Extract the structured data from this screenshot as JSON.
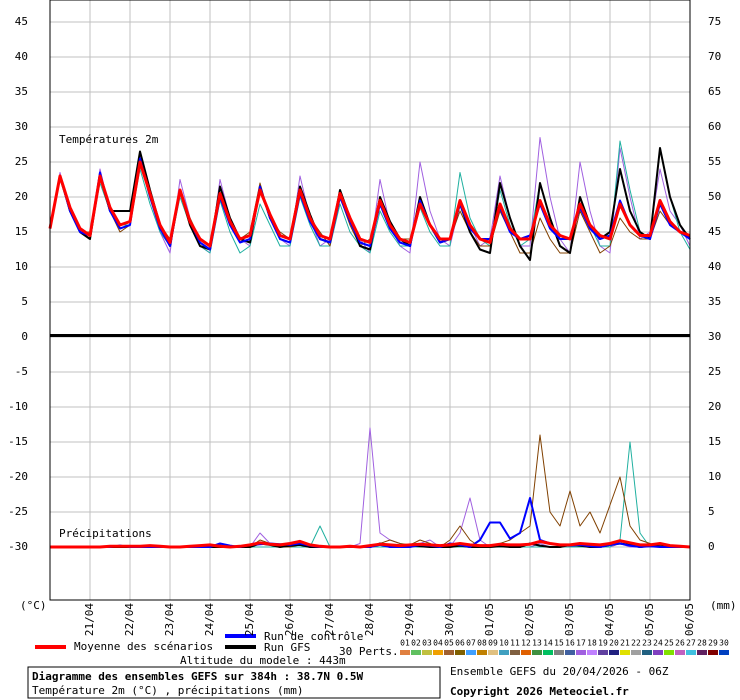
{
  "chart_data": {
    "type": "line",
    "title": "Diagramme des ensembles GEFS sur 384h : 38.7N 0.5W",
    "subtitle": "Température 2m (°C) , précipitations (mm)",
    "run_label": "Ensemble GEFS du 20/04/2026 - 06Z",
    "copyright": "Copyright 2026 Meteociel.fr",
    "altitude": "Altitude du modele : 443m",
    "temperature_label": "Températures 2m",
    "precipitation_label": "Précipitations",
    "y_unit": "(°C)",
    "y2_unit": "(mm)",
    "xlim": [
      0,
      64
    ],
    "xticks": [
      {
        "value": 4,
        "label": "21/04"
      },
      {
        "value": 8,
        "label": "22/04"
      },
      {
        "value": 12,
        "label": "23/04"
      },
      {
        "value": 16,
        "label": "24/04"
      },
      {
        "value": 20,
        "label": "25/04"
      },
      {
        "value": 24,
        "label": "26/04"
      },
      {
        "value": 28,
        "label": "27/04"
      },
      {
        "value": 32,
        "label": "28/04"
      },
      {
        "value": 36,
        "label": "29/04"
      },
      {
        "value": 40,
        "label": "30/04"
      },
      {
        "value": 44,
        "label": "01/05"
      },
      {
        "value": 48,
        "label": "02/05"
      },
      {
        "value": 52,
        "label": "03/05"
      },
      {
        "value": 56,
        "label": "04/05"
      },
      {
        "value": 60,
        "label": "05/05"
      },
      {
        "value": 64,
        "label": "06/05"
      }
    ],
    "ylim": [
      0,
      48
    ],
    "yticks": [
      0,
      5,
      10,
      15,
      20,
      25,
      30,
      35,
      40,
      45
    ],
    "lower_yticks": [
      -5,
      -10,
      -15,
      -20,
      -25,
      -30
    ],
    "y2lim": [
      30,
      78
    ],
    "y2ticks": [
      35,
      40,
      45,
      50,
      55,
      60,
      65,
      70,
      75
    ],
    "precip_lim": [
      0,
      30
    ],
    "precip_ticks": [
      0,
      5,
      10,
      15,
      20,
      25,
      30
    ],
    "grid": true,
    "series": [
      {
        "name": "Moyenne des scénarios",
        "color": "#ff0000",
        "temperature": [
          15.5,
          23,
          18.5,
          15.5,
          14.5,
          23,
          18.5,
          16,
          16.5,
          25,
          20.5,
          16,
          13.5,
          21,
          16.5,
          14,
          13,
          20.5,
          16.5,
          14,
          14.5,
          21,
          17.5,
          14.5,
          14,
          21,
          17,
          14.5,
          14,
          20.5,
          17,
          14,
          13.5,
          19.5,
          16,
          14,
          13.5,
          19,
          16,
          14,
          14,
          19.5,
          16,
          14,
          13.5,
          19,
          15.5,
          14,
          14,
          19.5,
          16,
          14.5,
          14,
          19,
          16,
          14.5,
          14,
          19,
          16,
          14.5,
          14.5,
          19.5,
          16.5,
          15,
          14.5
        ],
        "precipitation": [
          0,
          0,
          0,
          0,
          0,
          0,
          0.1,
          0.1,
          0.1,
          0.1,
          0.2,
          0.1,
          0,
          0,
          0.1,
          0.2,
          0.3,
          0.1,
          0,
          0.1,
          0.3,
          0.6,
          0.4,
          0.3,
          0.5,
          0.8,
          0.3,
          0.1,
          0,
          0,
          0.1,
          0,
          0.2,
          0.4,
          0.3,
          0.2,
          0.3,
          0.4,
          0.3,
          0.2,
          0.3,
          0.5,
          0.3,
          0.2,
          0.2,
          0.4,
          0.3,
          0.3,
          0.4,
          0.8,
          0.5,
          0.3,
          0.3,
          0.5,
          0.4,
          0.3,
          0.5,
          0.9,
          0.6,
          0.3,
          0.3,
          0.5,
          0.2,
          0.1,
          0
        ]
      },
      {
        "name": "Run de contrôle",
        "color": "#0000ff",
        "temperature": [
          15.5,
          23,
          18,
          15,
          14.5,
          23.5,
          18,
          15.5,
          16,
          25.5,
          20,
          15.5,
          13,
          21,
          16.5,
          13.5,
          12.5,
          20,
          16,
          13.5,
          14,
          21.5,
          17,
          14,
          13.5,
          20.5,
          16.5,
          14,
          13.5,
          20,
          16.5,
          13.5,
          13,
          19,
          15.5,
          13.5,
          13,
          19.5,
          16,
          13.5,
          14,
          19,
          15.5,
          14,
          14,
          18.5,
          15,
          14,
          14.5,
          19,
          15.5,
          14,
          14,
          18.5,
          15.5,
          14,
          14.5,
          19.5,
          16,
          14.5,
          14,
          19,
          16,
          15,
          14
        ],
        "precipitation": [
          0,
          0,
          0,
          0,
          0,
          0,
          0,
          0.2,
          0,
          0,
          0,
          0,
          0,
          0,
          0,
          0,
          0,
          0.5,
          0.2,
          0,
          0.3,
          0.4,
          0.5,
          0.4,
          0.3,
          0.5,
          0.2,
          0,
          0,
          0,
          0,
          0,
          0,
          0.3,
          0,
          0,
          0,
          0.3,
          0.2,
          0,
          0.5,
          0.3,
          0,
          1,
          3.5,
          3.5,
          1.2,
          2,
          7,
          1,
          0.5,
          0.3,
          0.2,
          0.3,
          0.1,
          0,
          0.3,
          0.5,
          0.2,
          0,
          0.1,
          0,
          0,
          0,
          0
        ]
      },
      {
        "name": "Run GFS",
        "color": "#000000",
        "temperature": [
          15.5,
          23,
          18,
          15,
          14,
          23,
          18,
          18,
          18,
          26.5,
          21,
          16,
          13,
          21,
          16,
          13,
          12.5,
          21.5,
          17,
          14,
          13.5,
          21.5,
          17,
          14.5,
          14,
          21.5,
          17.5,
          14,
          13.5,
          21,
          17,
          13,
          12.5,
          20,
          16.5,
          14,
          13,
          20,
          16,
          13.5,
          14,
          19,
          15,
          12.5,
          12,
          22,
          17,
          13,
          11,
          22,
          17,
          13,
          12,
          20,
          16,
          14,
          15,
          24,
          18,
          15,
          14,
          27,
          20,
          16,
          14
        ],
        "precipitation": [
          0,
          0,
          0,
          0,
          0,
          0,
          0,
          0,
          0,
          0,
          0,
          0,
          0,
          0,
          0,
          0,
          0,
          0,
          0,
          0,
          0,
          0.5,
          0.3,
          0,
          0.2,
          0.3,
          0,
          0,
          0,
          0,
          0,
          0,
          0,
          0.5,
          0.2,
          0,
          0.2,
          0.1,
          0,
          0,
          0,
          0.2,
          0,
          0,
          0,
          0.1,
          0,
          0,
          0.5,
          0.2,
          0,
          0,
          0.3,
          0.2,
          0,
          0,
          0.3,
          0.5,
          0.3,
          0,
          0.2,
          0.1,
          0,
          0,
          0
        ]
      }
    ],
    "perturbations_label": "30 Perts.",
    "perturbation_labels": [
      "01",
      "02",
      "03",
      "04",
      "05",
      "06",
      "07",
      "08",
      "09",
      "10",
      "11",
      "12",
      "13",
      "14",
      "15",
      "16",
      "17",
      "18",
      "19",
      "20",
      "21",
      "22",
      "23",
      "24",
      "25",
      "26",
      "27",
      "28",
      "29",
      "30"
    ],
    "perturbation_colors": [
      "#e08040",
      "#60c060",
      "#c0c040",
      "#f0a000",
      "#a06030",
      "#806000",
      "#40a0ff",
      "#c08000",
      "#e0c080",
      "#40a0c0",
      "#806040",
      "#e06000",
      "#409040",
      "#00c060",
      "#808080",
      "#4060a0",
      "#a060e0",
      "#c080ff",
      "#6040a0",
      "#202080",
      "#e0e000",
      "#a0a0a0",
      "#206080",
      "#8040c0",
      "#80e000",
      "#c060c0",
      "#40c0e0",
      "#602060",
      "#800000",
      "#0040c0"
    ],
    "perturbations": [
      {
        "color": "#a060e0",
        "temperature": [
          15.5,
          23.5,
          18,
          15,
          14,
          24,
          18,
          16,
          16,
          26,
          20,
          15,
          12,
          22.5,
          17,
          13,
          12,
          22.5,
          17,
          14,
          13,
          21,
          17,
          14,
          13,
          23,
          17,
          13,
          14,
          20,
          16,
          14,
          12,
          22.5,
          16,
          13,
          12,
          25,
          18,
          14,
          13,
          19,
          16,
          13,
          14,
          23,
          17,
          13,
          13,
          28.5,
          20,
          14,
          12,
          25,
          18,
          13,
          12,
          27,
          20,
          14,
          15,
          24,
          18,
          16,
          13
        ],
        "precipitation": [
          0,
          0,
          0,
          0,
          0,
          0,
          0,
          0,
          0,
          0,
          0,
          0,
          0,
          0,
          0,
          0,
          0,
          0,
          0,
          0,
          0,
          2,
          0.5,
          0,
          0,
          0,
          0,
          0,
          0,
          0,
          0,
          0.5,
          17,
          2,
          1,
          0.5,
          0,
          0.5,
          1,
          0,
          0,
          2,
          7,
          1,
          0,
          0.5,
          0,
          0,
          0,
          0.5,
          0,
          0,
          0,
          0.3,
          0,
          0,
          0,
          0.5,
          0,
          0,
          0,
          0,
          0,
          0,
          0
        ]
      },
      {
        "color": "#20b0a0",
        "temperature": [
          15.5,
          22.5,
          18,
          15,
          14.5,
          22,
          18,
          16,
          16,
          24,
          19,
          15,
          13,
          20,
          16,
          13,
          12,
          19.5,
          15,
          12,
          13,
          19,
          16,
          13,
          13,
          20,
          16,
          13,
          13,
          19,
          15,
          13,
          12,
          18,
          15,
          13,
          13,
          18.5,
          15,
          13,
          13,
          23.5,
          17,
          14,
          13,
          21,
          16,
          13,
          14,
          22,
          17,
          13,
          12,
          20,
          16,
          13,
          13,
          28,
          21,
          15,
          14,
          27,
          20,
          15,
          12.5
        ],
        "precipitation": [
          0,
          0,
          0,
          0,
          0,
          0,
          0,
          0,
          0,
          0,
          0,
          0,
          0,
          0,
          0,
          0,
          0,
          0,
          0,
          0,
          0,
          0,
          0,
          0,
          0,
          0,
          0,
          3,
          0,
          0,
          0,
          0,
          0,
          0,
          0,
          0,
          0,
          0,
          0,
          0,
          0,
          0,
          0,
          0,
          0,
          0,
          0,
          0,
          0,
          0,
          0,
          0,
          0,
          0,
          0,
          0,
          0,
          1,
          15,
          2,
          0,
          0,
          0,
          0,
          0
        ]
      },
      {
        "color": "#804000",
        "temperature": [
          15.5,
          23,
          18,
          15,
          15,
          23,
          18,
          15,
          16,
          25,
          20,
          16,
          14,
          21,
          17,
          14,
          13,
          20,
          16,
          14,
          15,
          22,
          17,
          15,
          14,
          21,
          17,
          15,
          13,
          20,
          16,
          13,
          14,
          19,
          16,
          14,
          14,
          19,
          16,
          14,
          14,
          18,
          15,
          13,
          13,
          18,
          15,
          12,
          12,
          17,
          14,
          12,
          12,
          18,
          15,
          12,
          13,
          17,
          15,
          14,
          14,
          18,
          16,
          15,
          14
        ],
        "precipitation": [
          0,
          0,
          0,
          0,
          0,
          0,
          0,
          0,
          0,
          0,
          0,
          0,
          0,
          0,
          0,
          0,
          0,
          0.3,
          0,
          0,
          0,
          1,
          0.5,
          0,
          0,
          0.3,
          0,
          0,
          0,
          0,
          0,
          0,
          0,
          0.5,
          1,
          0.5,
          0.3,
          1,
          0.5,
          0,
          1,
          3,
          1,
          0,
          0,
          0.5,
          1,
          2,
          3,
          16,
          5,
          3,
          8,
          3,
          5,
          2,
          6,
          10,
          3,
          1,
          0.5,
          0,
          0,
          0,
          0
        ]
      }
    ]
  }
}
